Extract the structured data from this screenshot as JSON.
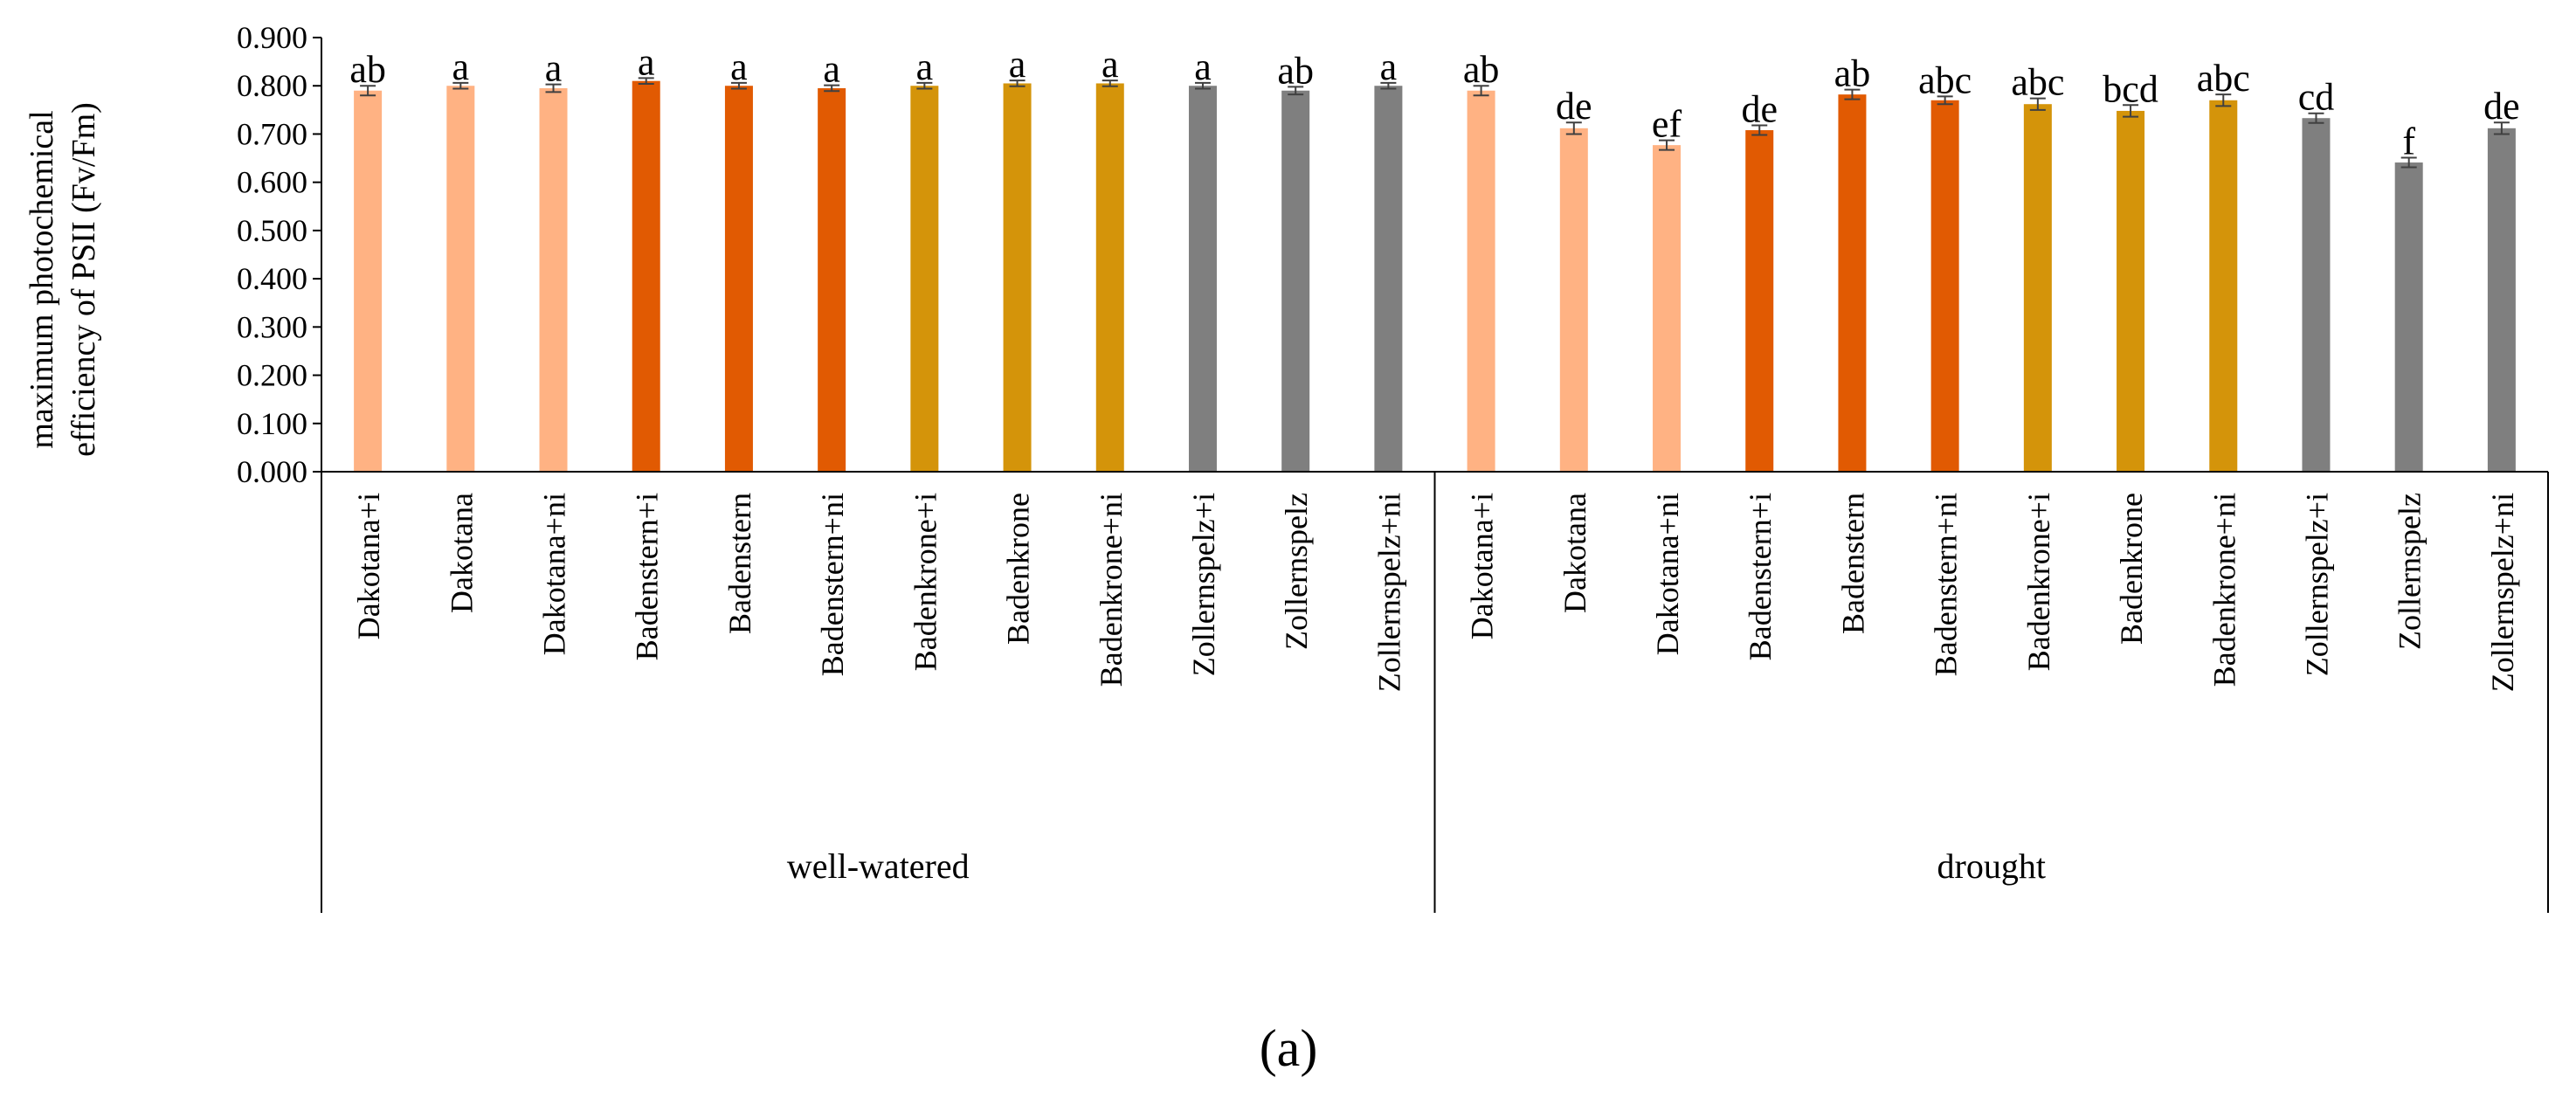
{
  "chart_data": {
    "type": "bar",
    "title": "",
    "ylabel_lines": [
      "maximum photochemical",
      "efficiency of PSII (Fv/Fm)"
    ],
    "xlabel": "",
    "ylim": [
      0,
      0.9
    ],
    "ytick_step": 0.1,
    "yticks": [
      "0.000",
      "0.100",
      "0.200",
      "0.300",
      "0.400",
      "0.500",
      "0.600",
      "0.700",
      "0.800",
      "0.900"
    ],
    "grid": false,
    "legend": "none",
    "groups": [
      {
        "name": "well-watered",
        "categories": [
          "Dakotana+i",
          "Dakotana",
          "Dakotana+ni",
          "Badenstern+i",
          "Badenstern",
          "Badenstern+ni",
          "Badenkrone+i",
          "Badenkrone",
          "Badenkrone+ni",
          "Zollernspelz+i",
          "Zollernspelz",
          "Zollernspelz+ni"
        ],
        "values": [
          0.79,
          0.8,
          0.795,
          0.81,
          0.8,
          0.795,
          0.8,
          0.805,
          0.805,
          0.8,
          0.79,
          0.8
        ],
        "errors": [
          0.01,
          0.006,
          0.008,
          0.006,
          0.006,
          0.006,
          0.006,
          0.006,
          0.006,
          0.006,
          0.008,
          0.006
        ],
        "significance": [
          "ab",
          "a",
          "a",
          "a",
          "a",
          "a",
          "a",
          "a",
          "a",
          "a",
          "ab",
          "a"
        ]
      },
      {
        "name": "drought",
        "categories": [
          "Dakotana+i",
          "Dakotana",
          "Dakotana+ni",
          "Badenstern+i",
          "Badenstern",
          "Badenstern+ni",
          "Badenkrone+i",
          "Badenkrone",
          "Badenkrone+ni",
          "Zollernspelz+i",
          "Zollernspelz",
          "Zollernspelz+ni"
        ],
        "values": [
          0.79,
          0.712,
          0.677,
          0.708,
          0.782,
          0.77,
          0.762,
          0.748,
          0.77,
          0.733,
          0.641,
          0.712
        ],
        "errors": [
          0.01,
          0.012,
          0.01,
          0.01,
          0.01,
          0.008,
          0.012,
          0.012,
          0.012,
          0.01,
          0.01,
          0.012
        ],
        "significance": [
          "ab",
          "de",
          "ef",
          "de",
          "ab",
          "abc",
          "abc",
          "bcd",
          "abc",
          "cd",
          "f",
          "de"
        ]
      }
    ],
    "colors": {
      "Dakotana": "#FFB283",
      "Badenstern": "#E15A02",
      "Badenkrone": "#D4940A",
      "Zollernspelz": "#7F7F7F",
      "axis": "#000000",
      "error_bar": "#404040"
    },
    "caption": "(a)"
  }
}
